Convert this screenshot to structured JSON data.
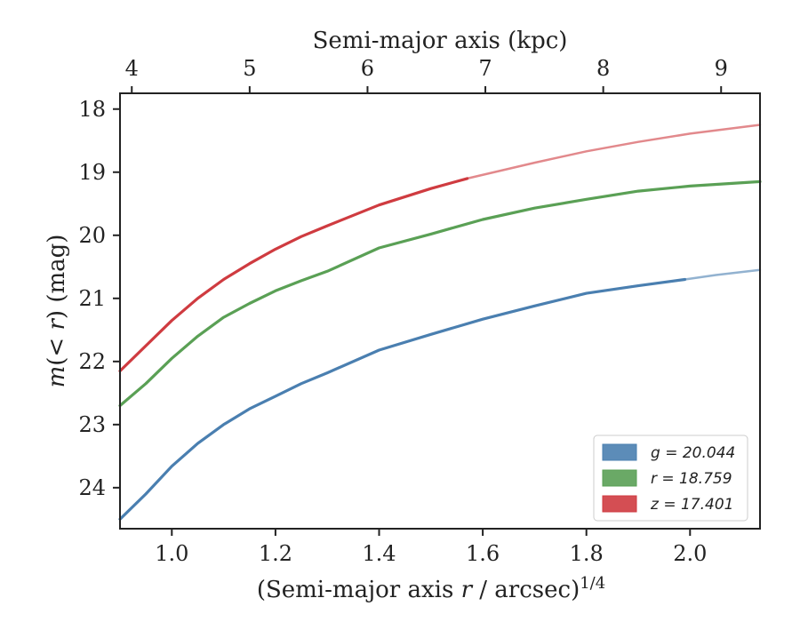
{
  "chart_data": {
    "type": "line",
    "xlabel": "(Semi-major axis r / arcsec)",
    "xlabel_exponent": "1/4",
    "ylabel": "m(< r) (mag)",
    "top_xlabel": "Semi-major axis (kpc)",
    "xlim": [
      0.9,
      2.135
    ],
    "ylim": [
      24.65,
      17.75
    ],
    "y_inverted": true,
    "x_ticks": [
      1.0,
      1.2,
      1.4,
      1.6,
      1.8,
      2.0
    ],
    "x_tick_labels": [
      "1.0",
      "1.2",
      "1.4",
      "1.6",
      "1.8",
      "2.0"
    ],
    "y_ticks": [
      18,
      19,
      20,
      21,
      22,
      23,
      24
    ],
    "y_tick_labels": [
      "18",
      "19",
      "20",
      "21",
      "22",
      "23",
      "24"
    ],
    "top_ticks_kpc": [
      4,
      5,
      6,
      7,
      8,
      9
    ],
    "top_tick_labels": [
      "4",
      "5",
      "6",
      "7",
      "8",
      "9"
    ],
    "grid": false,
    "legend_position": "lower-right",
    "series": [
      {
        "name": "g = 20.044",
        "color": "#4a7fb0",
        "x": [
          0.9,
          0.95,
          1.0,
          1.05,
          1.1,
          1.15,
          1.2,
          1.25,
          1.3,
          1.4,
          1.5,
          1.6,
          1.7,
          1.8,
          1.9,
          1.99
        ],
        "y": [
          24.5,
          24.1,
          23.66,
          23.3,
          23.0,
          22.75,
          22.55,
          22.35,
          22.18,
          21.82,
          21.57,
          21.33,
          21.12,
          20.92,
          20.8,
          20.7
        ],
        "ext_x": [
          1.99,
          2.05,
          2.135
        ],
        "ext_y": [
          20.7,
          20.63,
          20.55
        ]
      },
      {
        "name": "r = 18.759",
        "color": "#5aa055",
        "x": [
          0.9,
          0.95,
          1.0,
          1.05,
          1.1,
          1.15,
          1.2,
          1.25,
          1.3,
          1.4,
          1.5,
          1.6,
          1.7,
          1.8,
          1.9,
          2.0,
          2.135
        ],
        "y": [
          22.7,
          22.35,
          21.95,
          21.6,
          21.3,
          21.08,
          20.88,
          20.72,
          20.57,
          20.2,
          19.98,
          19.75,
          19.57,
          19.43,
          19.3,
          19.22,
          19.15
        ]
      },
      {
        "name": "z = 17.401",
        "color": "#cf3b40",
        "x": [
          0.9,
          0.95,
          1.0,
          1.05,
          1.1,
          1.15,
          1.2,
          1.25,
          1.3,
          1.4,
          1.5,
          1.57
        ],
        "y": [
          22.15,
          21.75,
          21.35,
          21.0,
          20.7,
          20.45,
          20.22,
          20.02,
          19.85,
          19.52,
          19.26,
          19.1
        ],
        "ext_x": [
          1.57,
          1.7,
          1.8,
          1.9,
          2.0,
          2.135
        ],
        "ext_y": [
          19.1,
          18.85,
          18.67,
          18.52,
          18.39,
          18.25
        ]
      }
    ]
  }
}
